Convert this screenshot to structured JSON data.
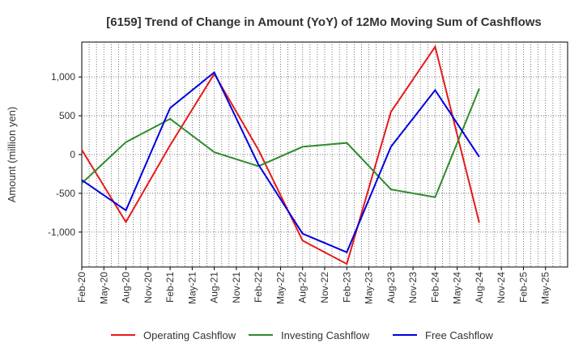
{
  "chart_data": {
    "type": "line",
    "title": "[6159]  Trend of Change in Amount (YoY) of 12Mo Moving Sum of Cashflows",
    "xlabel": "",
    "ylabel": "Amount (million yen)",
    "ylim": [
      -1450,
      1450
    ],
    "yticks": [
      -1000,
      -500,
      0,
      500,
      1000
    ],
    "ytick_labels": [
      "-1,000",
      "-500",
      "0",
      "500",
      "1,000"
    ],
    "categories": [
      "Feb-20",
      "May-20",
      "Aug-20",
      "Nov-20",
      "Feb-21",
      "May-21",
      "Aug-21",
      "Nov-21",
      "Feb-22",
      "May-22",
      "Aug-22",
      "Nov-22",
      "Feb-23",
      "May-23",
      "Aug-23",
      "Nov-23",
      "Feb-24",
      "May-24",
      "Aug-24",
      "Nov-24",
      "Feb-25",
      "May-25"
    ],
    "series": [
      {
        "name": "Operating Cashflow",
        "color": "#e41a1c",
        "values": [
          60,
          null,
          -870,
          null,
          120,
          null,
          1040,
          null,
          60,
          null,
          -1110,
          null,
          -1410,
          null,
          550,
          null,
          1390,
          null,
          -880,
          null,
          null,
          null
        ]
      },
      {
        "name": "Investing Cashflow",
        "color": "#2e8b2e",
        "values": [
          -370,
          null,
          160,
          null,
          460,
          null,
          30,
          null,
          -150,
          null,
          100,
          null,
          150,
          null,
          -450,
          null,
          -550,
          null,
          850,
          null,
          null,
          null
        ]
      },
      {
        "name": "Free Cashflow",
        "color": "#0000dd",
        "values": [
          -330,
          null,
          -720,
          null,
          600,
          null,
          1060,
          null,
          -130,
          null,
          -1020,
          null,
          -1260,
          null,
          100,
          null,
          830,
          null,
          -30,
          null,
          null,
          null
        ]
      }
    ],
    "grid": true,
    "legend_position": "bottom"
  }
}
